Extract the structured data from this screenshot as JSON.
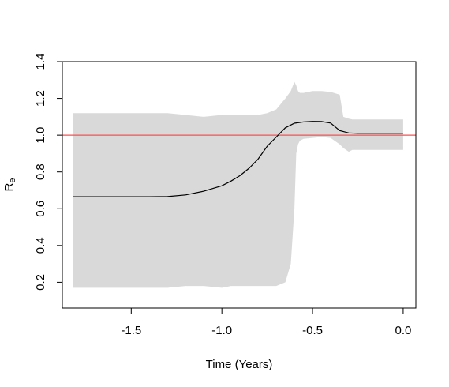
{
  "chart_data": {
    "type": "line",
    "title": "",
    "xlabel": "Time (Years)",
    "ylabel": {
      "main": "R",
      "subscript": "e"
    },
    "xlim": [
      -1.88,
      0.07
    ],
    "ylim": [
      0.06,
      1.4
    ],
    "xticks": [
      -1.5,
      -1.0,
      -0.5,
      0.0
    ],
    "xtick_labels": [
      "-1.5",
      "-1.0",
      "-0.5",
      "0.0"
    ],
    "yticks": [
      0.2,
      0.4,
      0.6,
      0.8,
      1.0,
      1.2,
      1.4
    ],
    "ytick_labels": [
      "0.2",
      "0.4",
      "0.6",
      "0.8",
      "1.0",
      "1.2",
      "1.4"
    ],
    "grid": false,
    "reference_line": {
      "y": 1.0,
      "color": "#ff4d4d"
    },
    "band_color": "#d9d9d9",
    "line_color": "#000000",
    "series": [
      {
        "x": [
          -1.82,
          -1.6,
          -1.4,
          -1.3,
          -1.2,
          -1.1,
          -1.0,
          -0.95,
          -0.9,
          -0.85,
          -0.8,
          -0.75,
          -0.7,
          -0.65,
          -0.6,
          -0.55,
          -0.5,
          -0.45,
          -0.4,
          -0.35,
          -0.3,
          -0.25,
          -0.2,
          -0.1,
          0.0
        ],
        "values": [
          0.665,
          0.665,
          0.665,
          0.666,
          0.675,
          0.695,
          0.725,
          0.75,
          0.78,
          0.82,
          0.87,
          0.94,
          0.99,
          1.04,
          1.065,
          1.072,
          1.075,
          1.074,
          1.066,
          1.025,
          1.012,
          1.01,
          1.01,
          1.01,
          1.01
        ]
      }
    ],
    "band": {
      "x": [
        -1.82,
        -1.6,
        -1.4,
        -1.3,
        -1.2,
        -1.1,
        -1.0,
        -0.95,
        -0.9,
        -0.85,
        -0.8,
        -0.75,
        -0.7,
        -0.65,
        -0.62,
        -0.6,
        -0.59,
        -0.58,
        -0.57,
        -0.55,
        -0.5,
        -0.45,
        -0.4,
        -0.35,
        -0.33,
        -0.3,
        -0.28,
        -0.25,
        -0.2,
        -0.1,
        0.0
      ],
      "upper": [
        1.12,
        1.12,
        1.12,
        1.12,
        1.11,
        1.1,
        1.11,
        1.11,
        1.11,
        1.11,
        1.11,
        1.12,
        1.14,
        1.2,
        1.24,
        1.29,
        1.27,
        1.24,
        1.23,
        1.23,
        1.24,
        1.24,
        1.235,
        1.22,
        1.1,
        1.09,
        1.085,
        1.085,
        1.085,
        1.085,
        1.085
      ],
      "lower": [
        0.17,
        0.17,
        0.17,
        0.17,
        0.18,
        0.18,
        0.17,
        0.18,
        0.18,
        0.18,
        0.18,
        0.18,
        0.18,
        0.2,
        0.3,
        0.6,
        0.9,
        0.95,
        0.97,
        0.98,
        0.985,
        0.99,
        0.985,
        0.95,
        0.93,
        0.91,
        0.92,
        0.92,
        0.92,
        0.92,
        0.92
      ]
    }
  }
}
